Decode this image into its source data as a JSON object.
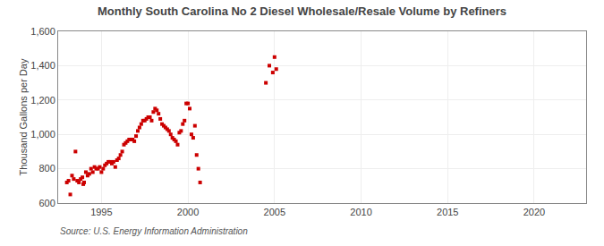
{
  "chart_data": {
    "type": "scatter",
    "title": "Monthly South Carolina No 2 Diesel Wholesale/Resale Volume by Refiners",
    "y_label": "Thousand Gallons per Day",
    "annotations": [
      "Source: U.S. Energy Information Administration"
    ],
    "color": "#cc0000",
    "marker": "square",
    "grid": true,
    "xlim": [
      1992.5,
      2023
    ],
    "ylim": [
      600,
      1600
    ],
    "xticks": [
      1995,
      2000,
      2005,
      2010,
      2015,
      2020
    ],
    "yticks": [
      600,
      800,
      {
        "value": 1000,
        "label": "1,000"
      },
      {
        "value": 1200,
        "label": "1,200"
      },
      {
        "value": 1400,
        "label": "1,400"
      },
      {
        "value": 1600,
        "label": "1,600"
      }
    ],
    "x": [
      1993.0,
      1993.1,
      1993.2,
      1993.3,
      1993.4,
      1993.5,
      1993.6,
      1993.7,
      1993.8,
      1993.9,
      1993.95,
      1994.0,
      1994.1,
      1994.2,
      1994.3,
      1994.4,
      1994.5,
      1994.6,
      1994.7,
      1994.8,
      1994.9,
      1995.0,
      1995.1,
      1995.2,
      1995.3,
      1995.4,
      1995.5,
      1995.6,
      1995.7,
      1995.8,
      1995.9,
      1996.0,
      1996.1,
      1996.2,
      1996.3,
      1996.4,
      1996.5,
      1996.6,
      1996.7,
      1996.8,
      1996.9,
      1997.0,
      1997.1,
      1997.2,
      1997.3,
      1997.4,
      1997.5,
      1997.6,
      1997.7,
      1997.8,
      1997.9,
      1998.0,
      1998.1,
      1998.2,
      1998.3,
      1998.4,
      1998.5,
      1998.6,
      1998.7,
      1998.8,
      1998.9,
      1999.0,
      1999.1,
      1999.2,
      1999.3,
      1999.4,
      1999.5,
      1999.6,
      1999.7,
      1999.8,
      1999.9,
      2000.0,
      2000.1,
      2000.2,
      2000.3,
      2000.4,
      2000.5,
      2000.6,
      2000.7,
      2004.5,
      2004.7,
      2004.9,
      2005.0,
      2005.1
    ],
    "values": [
      720,
      730,
      650,
      760,
      740,
      900,
      730,
      720,
      740,
      750,
      710,
      720,
      780,
      760,
      770,
      800,
      780,
      810,
      800,
      800,
      810,
      780,
      800,
      820,
      830,
      840,
      840,
      830,
      840,
      810,
      850,
      860,
      880,
      900,
      940,
      950,
      960,
      970,
      970,
      970,
      960,
      990,
      1020,
      1040,
      1060,
      1080,
      1080,
      1090,
      1100,
      1100,
      1080,
      1130,
      1150,
      1140,
      1120,
      1090,
      1060,
      1050,
      1040,
      1030,
      1020,
      1000,
      980,
      970,
      960,
      940,
      1010,
      1020,
      1060,
      1080,
      1180,
      1180,
      1150,
      1000,
      980,
      1050,
      880,
      800,
      720,
      1300,
      1400,
      1360,
      1450,
      1380
    ]
  }
}
